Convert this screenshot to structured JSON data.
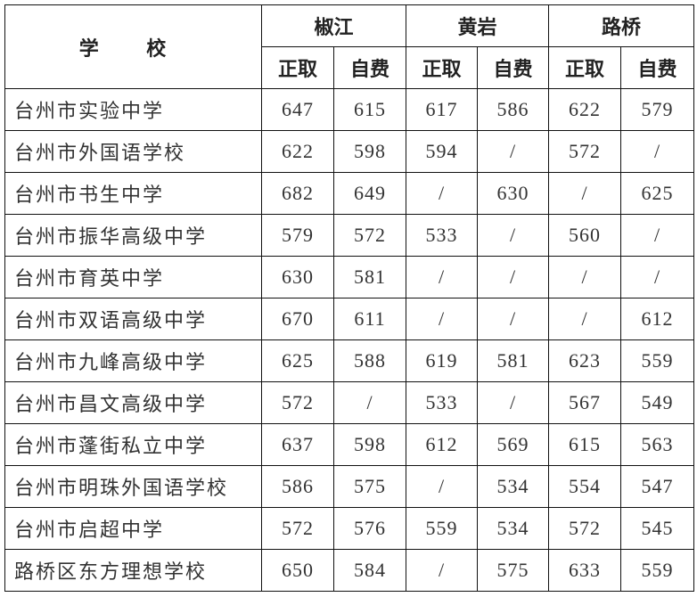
{
  "header": {
    "school_label": "学 校",
    "regions": [
      "椒江",
      "黄岩",
      "路桥"
    ],
    "sub_labels": [
      "正取",
      "自费",
      "正取",
      "自费",
      "正取",
      "自费"
    ]
  },
  "rows": [
    {
      "school": "台州市实验中学",
      "scores": [
        "647",
        "615",
        "617",
        "586",
        "622",
        "579"
      ]
    },
    {
      "school": "台州市外国语学校",
      "scores": [
        "622",
        "598",
        "594",
        "/",
        "572",
        "/"
      ]
    },
    {
      "school": "台州市书生中学",
      "scores": [
        "682",
        "649",
        "/",
        "630",
        "/",
        "625"
      ]
    },
    {
      "school": "台州市振华高级中学",
      "scores": [
        "579",
        "572",
        "533",
        "/",
        "560",
        "/"
      ]
    },
    {
      "school": "台州市育英中学",
      "scores": [
        "630",
        "581",
        "/",
        "/",
        "/",
        "/"
      ]
    },
    {
      "school": "台州市双语高级中学",
      "scores": [
        "670",
        "611",
        "/",
        "/",
        "/",
        "612"
      ]
    },
    {
      "school": "台州市九峰高级中学",
      "scores": [
        "625",
        "588",
        "619",
        "581",
        "623",
        "559"
      ]
    },
    {
      "school": "台州市昌文高级中学",
      "scores": [
        "572",
        "/",
        "533",
        "/",
        "567",
        "549"
      ]
    },
    {
      "school": "台州市蓬街私立中学",
      "scores": [
        "637",
        "598",
        "612",
        "569",
        "615",
        "563"
      ]
    },
    {
      "school": "台州市明珠外国语学校",
      "scores": [
        "586",
        "575",
        "/",
        "534",
        "554",
        "547"
      ]
    },
    {
      "school": "台州市启超中学",
      "scores": [
        "572",
        "576",
        "559",
        "534",
        "572",
        "545"
      ]
    },
    {
      "school": "路桥区东方理想学校",
      "scores": [
        "650",
        "584",
        "/",
        "575",
        "633",
        "559"
      ]
    }
  ]
}
